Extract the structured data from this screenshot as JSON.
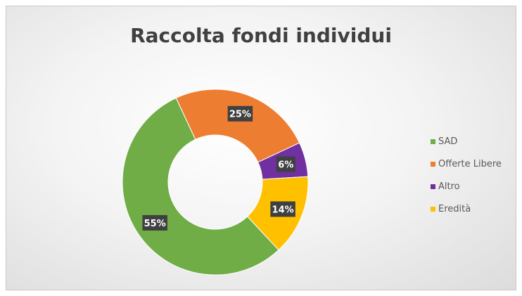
{
  "chart_data": {
    "type": "pie",
    "title": "Raccolta fondi individui",
    "categories": [
      "SAD",
      "Offerte Libere",
      "Altro",
      "Eredità"
    ],
    "values": [
      55,
      25,
      6,
      14
    ],
    "labels": [
      "55%",
      "25%",
      "6%",
      "14%"
    ],
    "colors": [
      "#70AD47",
      "#ED7D31",
      "#7030A0",
      "#FFC000"
    ],
    "legend_position": "right",
    "hole": "donut"
  }
}
